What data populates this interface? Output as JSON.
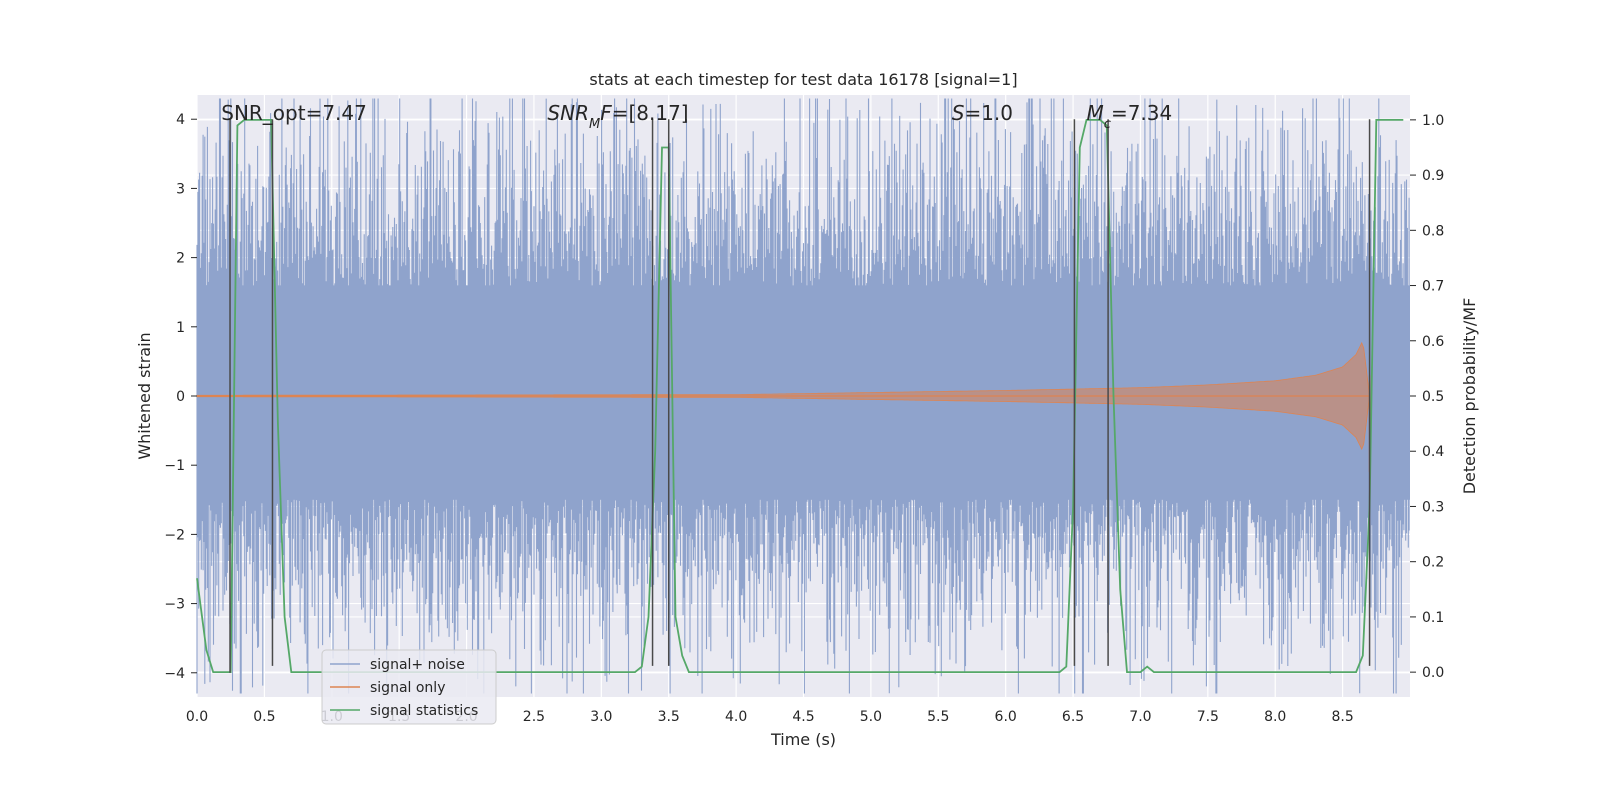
{
  "chart_data": {
    "type": "line",
    "title": "stats at each timestep for test data 16178 [signal=1]",
    "xlabel": "Time (s)",
    "ylabel_left": "Whitened strain",
    "ylabel_right": "Detection probability/MF",
    "xlim": [
      0.0,
      9.0
    ],
    "ylim_left": [
      -4.35,
      4.35
    ],
    "ylim_right": [
      -0.045,
      1.045
    ],
    "grid": true,
    "x_ticks": [
      "0.0",
      "0.5",
      "1.0",
      "1.5",
      "2.0",
      "2.5",
      "3.0",
      "3.5",
      "4.0",
      "4.5",
      "5.0",
      "5.5",
      "6.0",
      "6.5",
      "7.0",
      "7.5",
      "8.0",
      "8.5"
    ],
    "x_tick_values": [
      0.0,
      0.5,
      1.0,
      1.5,
      2.0,
      2.5,
      3.0,
      3.5,
      4.0,
      4.5,
      5.0,
      5.5,
      6.0,
      6.5,
      7.0,
      7.5,
      8.0,
      8.5
    ],
    "y_left_ticks": [
      "−4",
      "−3",
      "−2",
      "−1",
      "0",
      "1",
      "2",
      "3",
      "4"
    ],
    "y_left_tick_values": [
      -4,
      -3,
      -2,
      -1,
      0,
      1,
      2,
      3,
      4
    ],
    "y_right_ticks": [
      "0.0",
      "0.1",
      "0.2",
      "0.3",
      "0.4",
      "0.5",
      "0.6",
      "0.7",
      "0.8",
      "0.9",
      "1.0"
    ],
    "y_right_tick_values": [
      0.0,
      0.1,
      0.2,
      0.3,
      0.4,
      0.5,
      0.6,
      0.7,
      0.8,
      0.9,
      1.0
    ],
    "annotations": [
      {
        "text": "SNR_opt=7.47",
        "x": 0.18
      },
      {
        "html": "<tspan font-style='italic'>SNR</tspan><tspan font-style='italic' baseline-shift='sub' font-size='13'>M</tspan><tspan font-style='italic'>F</tspan>=[8.17]",
        "x": 2.6
      },
      {
        "html": "<tspan font-style='italic'>S</tspan>=1.0",
        "x": 5.6
      },
      {
        "html": "<tspan font-style='italic'>M</tspan><tspan font-style='italic' baseline-shift='sub' font-size='13'>c</tspan>=7.34",
        "x": 6.6
      }
    ],
    "legend": {
      "placement": "lower-left",
      "entries": [
        {
          "label": "signal+ noise",
          "color": "#8fa3cc"
        },
        {
          "label": "signal only",
          "color": "#dd8452"
        },
        {
          "label": "signal statistics",
          "color": "#55a868"
        }
      ]
    },
    "series": [
      {
        "name": "signal+ noise",
        "axis": "left",
        "color": "#8fa3cc",
        "kind": "noise",
        "sigma": 1.0,
        "duration": 9.0
      },
      {
        "name": "signal only",
        "axis": "left",
        "color": "#dd8452",
        "kind": "chirp",
        "envelope": {
          "t": [
            0.0,
            4.0,
            5.0,
            6.0,
            7.0,
            7.5,
            8.0,
            8.3,
            8.5,
            8.6,
            8.65,
            8.7
          ],
          "amp": [
            0.01,
            0.02,
            0.05,
            0.08,
            0.12,
            0.16,
            0.22,
            0.3,
            0.42,
            0.6,
            0.8,
            0.0
          ]
        }
      },
      {
        "name": "signal statistics",
        "axis": "right",
        "color": "#55a868",
        "x": [
          0.0,
          0.07,
          0.12,
          0.24,
          0.25,
          0.3,
          0.35,
          0.4,
          0.45,
          0.5,
          0.55,
          0.6,
          0.65,
          0.7,
          0.75,
          3.25,
          3.3,
          3.35,
          3.4,
          3.45,
          3.5,
          3.55,
          3.6,
          3.65,
          3.7,
          6.2,
          6.4,
          6.45,
          6.5,
          6.55,
          6.6,
          6.65,
          6.7,
          6.75,
          6.8,
          6.85,
          6.9,
          7.0,
          7.05,
          7.1,
          7.2,
          7.5,
          8.0,
          8.5,
          8.6,
          8.65,
          8.7,
          8.75,
          8.8,
          8.85,
          8.9,
          8.95
        ],
        "y": [
          0.17,
          0.04,
          0.0,
          0.0,
          0.0,
          0.99,
          1.0,
          1.0,
          1.0,
          1.0,
          1.0,
          0.45,
          0.1,
          0.0,
          0.0,
          0.0,
          0.01,
          0.1,
          0.4,
          0.95,
          0.95,
          0.1,
          0.03,
          0.0,
          0.0,
          0.0,
          0.0,
          0.01,
          0.3,
          0.95,
          1.0,
          1.0,
          1.0,
          0.99,
          0.5,
          0.15,
          0.0,
          0.0,
          0.01,
          0.0,
          0.0,
          0.0,
          0.0,
          0.0,
          0.0,
          0.03,
          0.3,
          1.0,
          1.0,
          1.0,
          1.0,
          1.0
        ]
      }
    ],
    "vlines": [
      {
        "x": 0.245,
        "y0": -4.0,
        "y1": 4.0
      },
      {
        "x": 0.56,
        "y0": -3.9,
        "y1": 4.0
      },
      {
        "x": 3.38,
        "y0": -3.9,
        "y1": 4.0
      },
      {
        "x": 3.5,
        "y0": -3.9,
        "y1": 4.0
      },
      {
        "x": 6.51,
        "y0": -3.9,
        "y1": 4.0
      },
      {
        "x": 6.76,
        "y0": -3.9,
        "y1": 4.0
      },
      {
        "x": 8.7,
        "y0": -3.9,
        "y1": 4.0
      }
    ]
  }
}
